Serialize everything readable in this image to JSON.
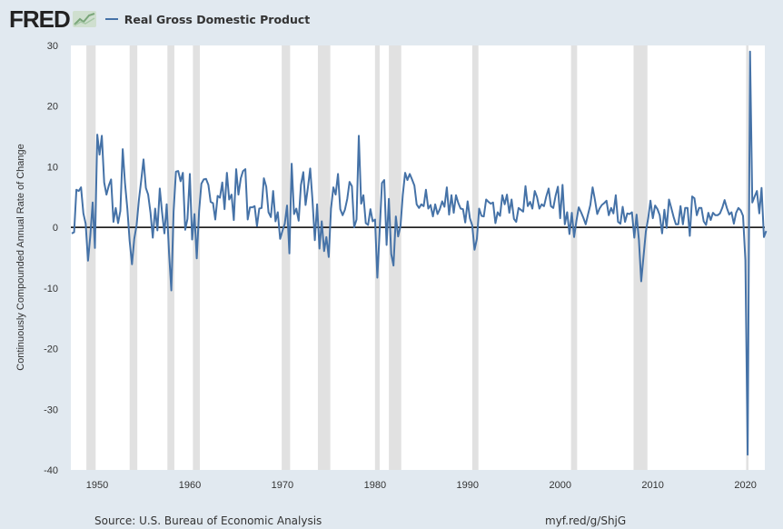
{
  "header": {
    "logo_text": "FRED",
    "legend_label": "Real Gross Domestic Product"
  },
  "footer": {
    "source": "Source: U.S. Bureau of Economic Analysis",
    "link": "myf.red/g/ShjG"
  },
  "colors": {
    "line": "#4572a7",
    "recession": "#e1e1e1",
    "plot_bg": "#ffffff",
    "page_bg": "#e1e9f0"
  },
  "chart_data": {
    "type": "line",
    "title": "",
    "xlabel": "",
    "ylabel": "Continuously Compounded Annual Rate of Change",
    "xlim": [
      1947.15,
      2022.1
    ],
    "ylim": [
      -40,
      30
    ],
    "x_ticks": [
      1950,
      1960,
      1970,
      1980,
      1990,
      2000,
      2010,
      2020
    ],
    "y_ticks": [
      -40,
      -30,
      -20,
      -10,
      0,
      10,
      20,
      30
    ],
    "grid": false,
    "legend": "top-left",
    "series": [
      {
        "name": "Real Gross Domestic Product",
        "start_year": 1947,
        "start_quarter": 2,
        "frequency": "quarterly",
        "values": [
          -1.0,
          -0.8,
          6.2,
          6.0,
          6.6,
          2.3,
          0.6,
          -5.5,
          -1.4,
          4.1,
          -3.4,
          15.3,
          12.0,
          15.1,
          7.4,
          5.4,
          6.9,
          7.9,
          0.9,
          3.2,
          0.7,
          2.7,
          12.9,
          7.3,
          3.1,
          -2.2,
          -6.1,
          -1.9,
          0.4,
          4.5,
          7.8,
          11.2,
          6.5,
          5.4,
          2.4,
          -1.7,
          3.1,
          -0.5,
          6.4,
          2.5,
          -1.0,
          3.8,
          -4.2,
          -10.4,
          2.6,
          9.2,
          9.3,
          7.6,
          9.0,
          -0.4,
          1.4,
          8.8,
          -2.0,
          2.2,
          -5.1,
          2.7,
          7.2,
          7.9,
          8.0,
          7.0,
          4.2,
          4.0,
          1.3,
          5.2,
          4.9,
          7.4,
          3.0,
          9.0,
          4.6,
          5.4,
          1.2,
          9.6,
          5.4,
          8.1,
          9.3,
          9.6,
          1.3,
          3.3,
          3.3,
          3.5,
          0.2,
          3.1,
          3.2,
          8.1,
          6.7,
          2.5,
          1.7,
          6.0,
          1.0,
          2.5,
          -1.9,
          -0.6,
          0.6,
          3.6,
          -4.3,
          10.5,
          2.2,
          3.1,
          1.1,
          7.0,
          9.1,
          3.7,
          6.6,
          9.7,
          4.5,
          -2.1,
          3.8,
          -3.5,
          1.0,
          -3.9,
          -1.6,
          -4.9,
          3.1,
          6.6,
          5.4,
          8.8,
          3.0,
          2.0,
          2.9,
          4.7,
          7.5,
          6.8,
          0.0,
          1.3,
          15.1,
          3.9,
          5.3,
          0.7,
          0.4,
          3.0,
          1.0,
          1.3,
          -8.3,
          -0.5,
          7.3,
          7.8,
          -2.9,
          4.7,
          -4.4,
          -6.3,
          1.8,
          -1.5,
          0.2,
          5.3,
          9.0,
          7.8,
          8.8,
          7.9,
          6.9,
          3.8,
          3.2,
          3.8,
          3.5,
          6.2,
          3.1,
          3.7,
          1.8,
          3.8,
          2.2,
          3.0,
          4.3,
          3.4,
          6.6,
          2.1,
          5.3,
          2.4,
          5.3,
          4.0,
          3.1,
          3.0,
          0.8,
          4.3,
          1.5,
          0.3,
          -3.7,
          -1.9,
          3.1,
          1.9,
          1.8,
          4.6,
          4.2,
          3.9,
          4.1,
          0.7,
          2.5,
          1.9,
          5.3,
          3.8,
          5.4,
          2.4,
          4.6,
          1.4,
          0.9,
          3.2,
          2.9,
          2.6,
          6.8,
          3.5,
          4.2,
          3.1,
          6.0,
          5.0,
          3.1,
          3.8,
          3.5,
          5.1,
          6.4,
          3.5,
          3.2,
          5.2,
          6.7,
          1.5,
          7.0,
          0.5,
          2.5,
          -1.1,
          2.4,
          -1.6,
          1.1,
          3.3,
          2.5,
          1.6,
          0.5,
          2.1,
          3.7,
          6.6,
          4.6,
          2.2,
          3.1,
          3.7,
          4.0,
          4.4,
          2.0,
          3.2,
          2.3,
          5.3,
          0.9,
          0.6,
          3.4,
          0.9,
          2.3,
          2.2,
          2.5,
          -1.7,
          2.1,
          -2.1,
          -8.9,
          -4.7,
          -0.7,
          1.5,
          4.4,
          1.5,
          3.6,
          3.0,
          2.0,
          -1.0,
          2.9,
          -0.1,
          4.6,
          3.2,
          1.7,
          0.5,
          0.5,
          3.5,
          0.5,
          3.2,
          3.2,
          -1.4,
          5.1,
          4.8,
          2.0,
          3.2,
          3.2,
          1.0,
          0.4,
          2.4,
          1.2,
          2.4,
          2.0,
          2.0,
          2.3,
          3.2,
          4.5,
          3.2,
          2.1,
          2.5,
          0.6,
          2.4,
          3.2,
          2.8,
          1.9,
          -5.4,
          -37.5,
          29.0,
          4.1,
          5.1,
          6.0,
          2.3,
          6.5,
          -1.6,
          -0.6
        ]
      }
    ],
    "recessions": [
      [
        1948.83,
        1949.83
      ],
      [
        1953.5,
        1954.33
      ],
      [
        1957.58,
        1958.33
      ],
      [
        1960.33,
        1961.08
      ],
      [
        1969.92,
        1970.83
      ],
      [
        1973.83,
        1975.17
      ],
      [
        1980.0,
        1980.5
      ],
      [
        1981.5,
        1982.83
      ],
      [
        1990.5,
        1991.17
      ],
      [
        2001.17,
        2001.83
      ],
      [
        2007.92,
        2009.42
      ],
      [
        2020.08,
        2020.33
      ]
    ]
  }
}
